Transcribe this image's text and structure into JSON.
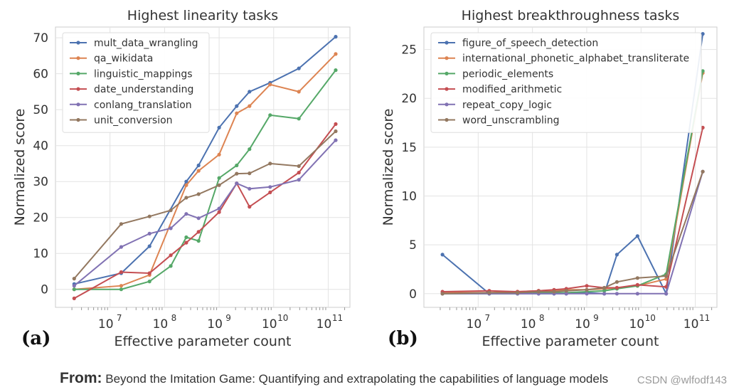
{
  "chart_data": [
    {
      "type": "line",
      "panel_label": "(a)",
      "title": "Highest linearity tasks",
      "xlabel": "Effective parameter count",
      "ylabel": "Normalized score",
      "xscale": "log",
      "xlim": [
        1000000,
        250000000000
      ],
      "ylim": [
        -5,
        73
      ],
      "yticks": [
        0,
        10,
        20,
        30,
        40,
        50,
        60,
        70
      ],
      "xticks": [
        {
          "value": 10000000,
          "base": "10",
          "exp": "7"
        },
        {
          "value": 100000000,
          "base": "10",
          "exp": "8"
        },
        {
          "value": 1000000000,
          "base": "10",
          "exp": "9"
        },
        {
          "value": 10000000000,
          "base": "10",
          "exp": "10"
        },
        {
          "value": 100000000000,
          "base": "10",
          "exp": "11"
        }
      ],
      "grid": true,
      "legend_position": "top-left",
      "series": [
        {
          "name": "mult_data_wrangling",
          "color": "#4c72b0",
          "points": [
            [
              2200000,
              1.5
            ],
            [
              16000000,
              4.5
            ],
            [
              53000000,
              12
            ],
            [
              250000000,
              30
            ],
            [
              420000000,
              34.5
            ],
            [
              1000000000,
              45
            ],
            [
              2100000000,
              51
            ],
            [
              3600000000,
              55
            ],
            [
              8600000000,
              57.5
            ],
            [
              29000000000,
              61.5
            ],
            [
              137000000000,
              70.3
            ]
          ]
        },
        {
          "name": "qa_wikidata",
          "color": "#dd8452",
          "points": [
            [
              2200000,
              0
            ],
            [
              16000000,
              1
            ],
            [
              53000000,
              4
            ],
            [
              250000000,
              29
            ],
            [
              420000000,
              33
            ],
            [
              1000000000,
              37.5
            ],
            [
              2100000000,
              49
            ],
            [
              3600000000,
              51
            ],
            [
              8600000000,
              57
            ],
            [
              29000000000,
              55
            ],
            [
              137000000000,
              65.5
            ]
          ]
        },
        {
          "name": "linguistic_mappings",
          "color": "#55a868",
          "points": [
            [
              2200000,
              0
            ],
            [
              16000000,
              0
            ],
            [
              53000000,
              2.2
            ],
            [
              130000000,
              6.5
            ],
            [
              250000000,
              14.5
            ],
            [
              420000000,
              13.5
            ],
            [
              1000000000,
              31
            ],
            [
              2100000000,
              34.5
            ],
            [
              3600000000,
              39
            ],
            [
              8600000000,
              48.5
            ],
            [
              29000000000,
              47.5
            ],
            [
              137000000000,
              61
            ]
          ]
        },
        {
          "name": "date_understanding",
          "color": "#c44e52",
          "points": [
            [
              2200000,
              -2.5
            ],
            [
              16000000,
              4.8
            ],
            [
              53000000,
              4.5
            ],
            [
              130000000,
              9.5
            ],
            [
              250000000,
              13
            ],
            [
              420000000,
              16
            ],
            [
              1000000000,
              21.5
            ],
            [
              2100000000,
              29.5
            ],
            [
              3600000000,
              23
            ],
            [
              8600000000,
              27
            ],
            [
              29000000000,
              32.5
            ],
            [
              137000000000,
              46
            ]
          ]
        },
        {
          "name": "conlang_translation",
          "color": "#8172b3",
          "points": [
            [
              2200000,
              1
            ],
            [
              16000000,
              11.8
            ],
            [
              53000000,
              15.5
            ],
            [
              130000000,
              17
            ],
            [
              250000000,
              21
            ],
            [
              420000000,
              19.8
            ],
            [
              1000000000,
              22.5
            ],
            [
              2100000000,
              29.5
            ],
            [
              3600000000,
              28
            ],
            [
              8600000000,
              28.5
            ],
            [
              29000000000,
              30.5
            ],
            [
              137000000000,
              41.5
            ]
          ]
        },
        {
          "name": "unit_conversion",
          "color": "#937860",
          "points": [
            [
              2200000,
              3
            ],
            [
              16000000,
              18.2
            ],
            [
              53000000,
              20.3
            ],
            [
              130000000,
              22
            ],
            [
              250000000,
              25.5
            ],
            [
              420000000,
              26.5
            ],
            [
              1000000000,
              29
            ],
            [
              2100000000,
              32.2
            ],
            [
              3600000000,
              32.3
            ],
            [
              8600000000,
              35
            ],
            [
              29000000000,
              34.3
            ],
            [
              137000000000,
              44
            ]
          ]
        }
      ]
    },
    {
      "type": "line",
      "panel_label": "(b)",
      "title": "Highest breakthroughness tasks",
      "xlabel": "Effective parameter count",
      "ylabel": "Normalized score",
      "xscale": "log",
      "xlim": [
        1000000,
        250000000000
      ],
      "ylim": [
        -1.4,
        27.3
      ],
      "yticks": [
        0,
        5,
        10,
        15,
        20,
        25
      ],
      "xticks": [
        {
          "value": 10000000,
          "base": "10",
          "exp": "7"
        },
        {
          "value": 100000000,
          "base": "10",
          "exp": "8"
        },
        {
          "value": 1000000000,
          "base": "10",
          "exp": "9"
        },
        {
          "value": 10000000000,
          "base": "10",
          "exp": "10"
        },
        {
          "value": 100000000000,
          "base": "10",
          "exp": "11"
        }
      ],
      "grid": true,
      "legend_position": "top-left",
      "series": [
        {
          "name": "figure_of_speech_detection",
          "color": "#4c72b0",
          "points": [
            [
              2200000,
              4
            ],
            [
              16000000,
              0
            ],
            [
              53000000,
              0
            ],
            [
              130000000,
              0
            ],
            [
              250000000,
              0
            ],
            [
              420000000,
              0
            ],
            [
              1000000000,
              0.1
            ],
            [
              2100000000,
              0
            ],
            [
              3600000000,
              4
            ],
            [
              8600000000,
              5.9
            ],
            [
              29000000000,
              0
            ],
            [
              137000000000,
              26.6
            ]
          ]
        },
        {
          "name": "international_phonetic_alphabet_transliterate",
          "color": "#dd8452",
          "points": [
            [
              2200000,
              0.1
            ],
            [
              16000000,
              0.1
            ],
            [
              53000000,
              0.2
            ],
            [
              130000000,
              0.3
            ],
            [
              250000000,
              0.3
            ],
            [
              420000000,
              0.4
            ],
            [
              1000000000,
              0.4
            ],
            [
              2100000000,
              0.5
            ],
            [
              3600000000,
              0.6
            ],
            [
              8600000000,
              0.8
            ],
            [
              29000000000,
              1.5
            ],
            [
              137000000000,
              22.6
            ]
          ]
        },
        {
          "name": "periodic_elements",
          "color": "#55a868",
          "points": [
            [
              2200000,
              0
            ],
            [
              16000000,
              0
            ],
            [
              53000000,
              0
            ],
            [
              130000000,
              0.1
            ],
            [
              250000000,
              0.1
            ],
            [
              420000000,
              0.1
            ],
            [
              1000000000,
              0.2
            ],
            [
              2100000000,
              0.3
            ],
            [
              3600000000,
              0.5
            ],
            [
              8600000000,
              0.8
            ],
            [
              29000000000,
              2
            ],
            [
              137000000000,
              22.8
            ]
          ]
        },
        {
          "name": "modified_arithmetic",
          "color": "#c44e52",
          "points": [
            [
              2200000,
              0.2
            ],
            [
              16000000,
              0.3
            ],
            [
              53000000,
              0.2
            ],
            [
              130000000,
              0.3
            ],
            [
              250000000,
              0.4
            ],
            [
              420000000,
              0.5
            ],
            [
              1000000000,
              0.8
            ],
            [
              2100000000,
              0.6
            ],
            [
              3600000000,
              0.6
            ],
            [
              8600000000,
              0.9
            ],
            [
              29000000000,
              0.7
            ],
            [
              137000000000,
              17
            ]
          ]
        },
        {
          "name": "repeat_copy_logic",
          "color": "#8172b3",
          "points": [
            [
              2200000,
              0
            ],
            [
              16000000,
              0
            ],
            [
              53000000,
              0
            ],
            [
              130000000,
              0
            ],
            [
              250000000,
              0
            ],
            [
              420000000,
              0
            ],
            [
              1000000000,
              0
            ],
            [
              2100000000,
              0
            ],
            [
              3600000000,
              0
            ],
            [
              8600000000,
              0
            ],
            [
              29000000000,
              0
            ],
            [
              137000000000,
              12.5
            ]
          ]
        },
        {
          "name": "word_unscrambling",
          "color": "#937860",
          "points": [
            [
              2200000,
              0
            ],
            [
              16000000,
              0.1
            ],
            [
              53000000,
              0.1
            ],
            [
              130000000,
              0.2
            ],
            [
              250000000,
              0.2
            ],
            [
              420000000,
              0.3
            ],
            [
              1000000000,
              0.4
            ],
            [
              2100000000,
              0.6
            ],
            [
              3600000000,
              1.2
            ],
            [
              8600000000,
              1.6
            ],
            [
              29000000000,
              1.8
            ],
            [
              137000000000,
              12.5
            ]
          ]
        }
      ]
    }
  ],
  "caption": {
    "lead": "From:",
    "text": "Beyond the Imitation Game: Quantifying and extrapolating the capabilities of language models"
  },
  "watermark": "CSDN @wlfodf143"
}
